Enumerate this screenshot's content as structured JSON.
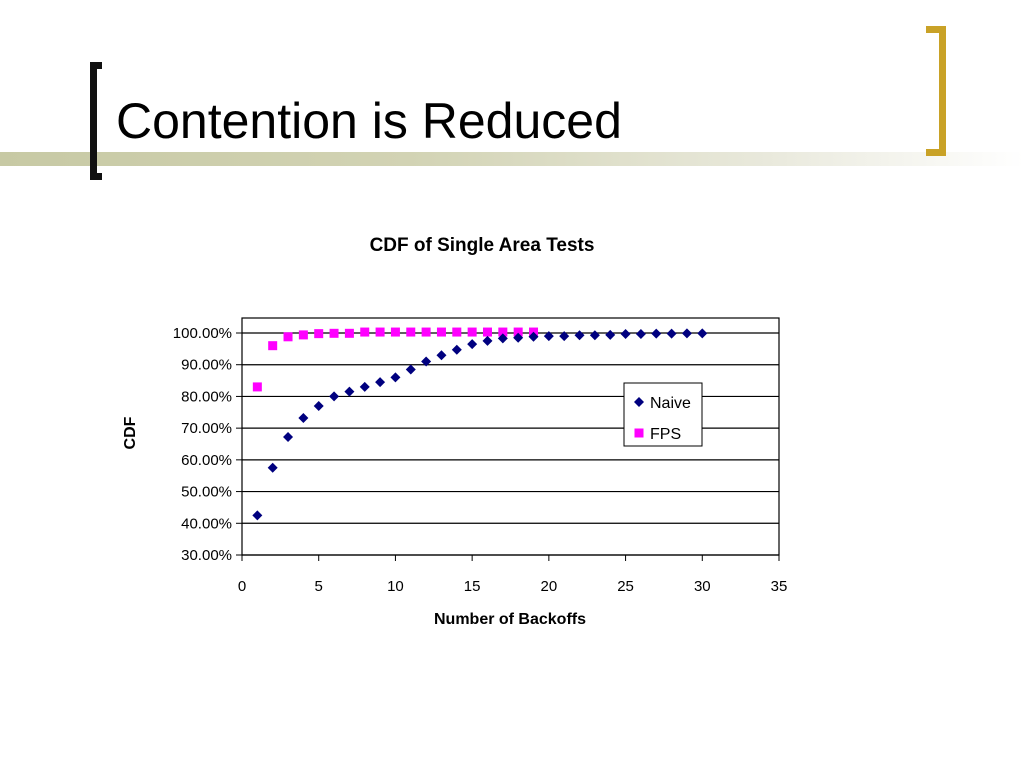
{
  "slide": {
    "title": "Contention is Reduced"
  },
  "colors": {
    "left_bracket": "#111111",
    "right_bracket": "#c9a227",
    "naive": "#00007f",
    "fps": "#ff00ff"
  },
  "chart_data": {
    "type": "scatter",
    "title": "CDF of Single Area Tests",
    "xlabel": "Number of Backoffs",
    "ylabel": "CDF",
    "xlim": [
      0,
      35
    ],
    "ylim": [
      0.3,
      1.0
    ],
    "x_ticks": [
      0,
      5,
      10,
      15,
      20,
      25,
      30,
      35
    ],
    "y_ticks": [
      0.3,
      0.4,
      0.5,
      0.6,
      0.7,
      0.8,
      0.9,
      1.0
    ],
    "x_tick_labels": [
      "0",
      "5",
      "10",
      "15",
      "20",
      "25",
      "30",
      "35"
    ],
    "y_tick_labels": [
      "30.00%",
      "40.00%",
      "50.00%",
      "60.00%",
      "70.00%",
      "80.00%",
      "90.00%",
      "100.00%"
    ],
    "grid": "horizontal major gridlines",
    "legend_position": "right",
    "series": [
      {
        "name": "Naive",
        "marker": "diamond",
        "color": "#00007f",
        "x": [
          1,
          2,
          3,
          4,
          5,
          6,
          7,
          8,
          9,
          10,
          11,
          12,
          13,
          14,
          15,
          16,
          17,
          18,
          19,
          20,
          21,
          22,
          23,
          24,
          25,
          26,
          27,
          28,
          29,
          30
        ],
        "y": [
          0.425,
          0.575,
          0.672,
          0.732,
          0.77,
          0.8,
          0.815,
          0.83,
          0.845,
          0.86,
          0.885,
          0.91,
          0.93,
          0.947,
          0.965,
          0.975,
          0.983,
          0.985,
          0.988,
          0.99,
          0.99,
          0.993,
          0.993,
          0.994,
          0.997,
          0.997,
          0.998,
          0.998,
          0.999,
          0.999
        ]
      },
      {
        "name": "FPS",
        "marker": "square",
        "color": "#ff00ff",
        "x": [
          1,
          2,
          3,
          4,
          5,
          6,
          7,
          8,
          9,
          10,
          11,
          12,
          13,
          14,
          15,
          16,
          17,
          18,
          19
        ],
        "y": [
          0.83,
          0.96,
          0.988,
          0.994,
          0.998,
          0.999,
          0.999,
          1.003,
          1.003,
          1.003,
          1.003,
          1.003,
          1.003,
          1.003,
          1.003,
          1.003,
          1.003,
          1.003,
          1.003
        ]
      }
    ]
  }
}
